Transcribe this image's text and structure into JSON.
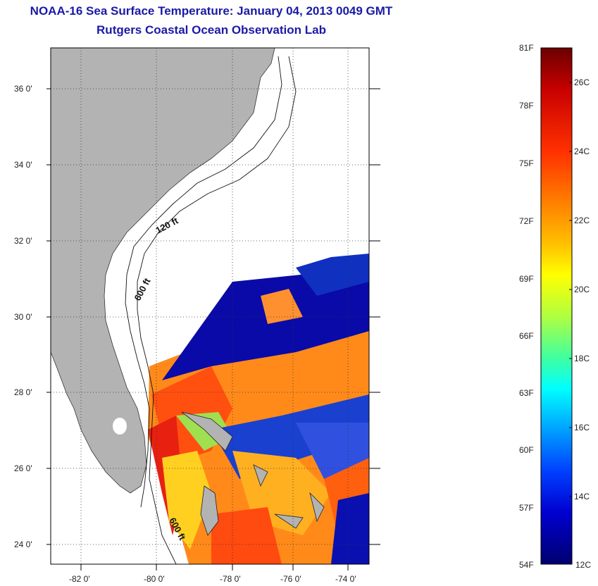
{
  "title": "NOAA-16 Sea Surface Temperature:  January 04, 2013 0049 GMT",
  "subtitle": "Rutgers Coastal Ocean Observation Lab",
  "map": {
    "lat_labels": [
      "36 0'",
      "34 0'",
      "32 0'",
      "30 0'",
      "28 0'",
      "26 0'",
      "24 0'"
    ],
    "lon_labels": [
      "-82 0'",
      "-80 0'",
      "-78 0'",
      "-76 0'",
      "-74 0'"
    ],
    "land_color": "#b3b3b3",
    "contours": [
      "120 ft",
      "600 ft",
      "600 ft"
    ]
  },
  "colorbar": {
    "fahrenheit": [
      "81F",
      "78F",
      "75F",
      "72F",
      "69F",
      "66F",
      "63F",
      "60F",
      "57F",
      "54F"
    ],
    "celsius": [
      "26C",
      "24C",
      "22C",
      "20C",
      "18C",
      "16C",
      "14C",
      "12C"
    ],
    "colors": [
      "#6b0000",
      "#c80000",
      "#ff4000",
      "#ff9a00",
      "#ffd400",
      "#ffff00",
      "#9cff50",
      "#00ffd0",
      "#00c8ff",
      "#0060ff",
      "#0000d0",
      "#000070"
    ]
  }
}
